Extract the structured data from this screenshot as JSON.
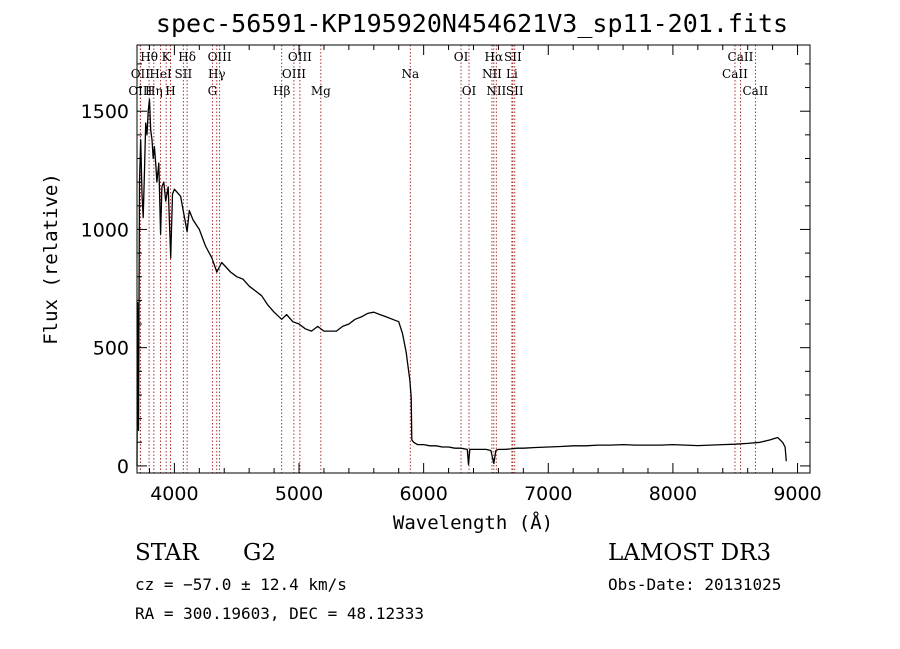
{
  "chart_data": {
    "type": "line",
    "title": "spec-56591-KP195920N454621V3_sp11-201.fits",
    "xlabel": "Wavelength (Å)",
    "ylabel": "Flux (relative)",
    "xlim": [
      3700,
      9100
    ],
    "ylim": [
      -30,
      1780
    ],
    "xticks": [
      4000,
      5000,
      6000,
      7000,
      8000,
      9000
    ],
    "yticks": [
      0,
      500,
      1000,
      1500
    ],
    "grid": false,
    "series": [
      {
        "name": "flux",
        "points": [
          [
            3700,
            0
          ],
          [
            3705,
            690
          ],
          [
            3712,
            150
          ],
          [
            3720,
            1200
          ],
          [
            3730,
            1380
          ],
          [
            3740,
            1150
          ],
          [
            3750,
            1050
          ],
          [
            3760,
            1250
          ],
          [
            3770,
            1450
          ],
          [
            3780,
            1400
          ],
          [
            3790,
            1500
          ],
          [
            3800,
            1550
          ],
          [
            3810,
            1420
          ],
          [
            3820,
            1380
          ],
          [
            3830,
            1300
          ],
          [
            3840,
            1350
          ],
          [
            3850,
            1280
          ],
          [
            3860,
            1200
          ],
          [
            3875,
            1280
          ],
          [
            3889,
            980
          ],
          [
            3900,
            1180
          ],
          [
            3915,
            1200
          ],
          [
            3930,
            1120
          ],
          [
            3950,
            1180
          ],
          [
            3970,
            880
          ],
          [
            3985,
            1150
          ],
          [
            4000,
            1170
          ],
          [
            4050,
            1140
          ],
          [
            4102,
            990
          ],
          [
            4120,
            1080
          ],
          [
            4150,
            1040
          ],
          [
            4200,
            1000
          ],
          [
            4250,
            930
          ],
          [
            4300,
            880
          ],
          [
            4340,
            820
          ],
          [
            4380,
            860
          ],
          [
            4450,
            820
          ],
          [
            4500,
            800
          ],
          [
            4550,
            790
          ],
          [
            4600,
            760
          ],
          [
            4650,
            740
          ],
          [
            4700,
            720
          ],
          [
            4750,
            680
          ],
          [
            4800,
            650
          ],
          [
            4861,
            620
          ],
          [
            4900,
            640
          ],
          [
            4950,
            610
          ],
          [
            5000,
            600
          ],
          [
            5050,
            580
          ],
          [
            5100,
            570
          ],
          [
            5150,
            590
          ],
          [
            5200,
            570
          ],
          [
            5250,
            570
          ],
          [
            5300,
            570
          ],
          [
            5350,
            590
          ],
          [
            5400,
            600
          ],
          [
            5450,
            620
          ],
          [
            5500,
            630
          ],
          [
            5550,
            645
          ],
          [
            5600,
            650
          ],
          [
            5650,
            640
          ],
          [
            5700,
            630
          ],
          [
            5750,
            620
          ],
          [
            5800,
            610
          ],
          [
            5830,
            560
          ],
          [
            5860,
            480
          ],
          [
            5890,
            360
          ],
          [
            5900,
            290
          ],
          [
            5905,
            110
          ],
          [
            5920,
            100
          ],
          [
            5950,
            90
          ],
          [
            6000,
            90
          ],
          [
            6050,
            85
          ],
          [
            6100,
            85
          ],
          [
            6150,
            80
          ],
          [
            6200,
            80
          ],
          [
            6250,
            75
          ],
          [
            6300,
            75
          ],
          [
            6350,
            70
          ],
          [
            6360,
            5
          ],
          [
            6370,
            70
          ],
          [
            6400,
            70
          ],
          [
            6450,
            70
          ],
          [
            6500,
            70
          ],
          [
            6540,
            65
          ],
          [
            6563,
            10
          ],
          [
            6580,
            65
          ],
          [
            6600,
            70
          ],
          [
            6650,
            70
          ],
          [
            6700,
            72
          ],
          [
            6750,
            75
          ],
          [
            6800,
            75
          ],
          [
            6900,
            78
          ],
          [
            7000,
            80
          ],
          [
            7100,
            82
          ],
          [
            7200,
            85
          ],
          [
            7300,
            85
          ],
          [
            7400,
            88
          ],
          [
            7500,
            88
          ],
          [
            7600,
            90
          ],
          [
            7700,
            88
          ],
          [
            7800,
            88
          ],
          [
            7900,
            88
          ],
          [
            8000,
            90
          ],
          [
            8100,
            88
          ],
          [
            8200,
            86
          ],
          [
            8300,
            88
          ],
          [
            8400,
            90
          ],
          [
            8500,
            92
          ],
          [
            8600,
            95
          ],
          [
            8700,
            100
          ],
          [
            8780,
            110
          ],
          [
            8840,
            120
          ],
          [
            8880,
            100
          ],
          [
            8900,
            80
          ],
          [
            8910,
            20
          ]
        ]
      }
    ],
    "spectral_lines": [
      {
        "label": "Hθ",
        "wavelength": 3797,
        "row": 1
      },
      {
        "label": "OII",
        "wavelength": 3727,
        "row": 2
      },
      {
        "label": "OIII",
        "wavelength": 3727,
        "row": 3
      },
      {
        "label": "K",
        "wavelength": 3934,
        "row": 1
      },
      {
        "label": "Hδ",
        "wavelength": 4102,
        "row": 1
      },
      {
        "label": "HeI",
        "wavelength": 3889,
        "row": 2
      },
      {
        "label": "SII",
        "wavelength": 4072,
        "row": 2
      },
      {
        "label": "Hη",
        "wavelength": 3835,
        "row": 3
      },
      {
        "label": "H",
        "wavelength": 3969,
        "row": 3
      },
      {
        "label": "OIII",
        "wavelength": 4363,
        "row": 1
      },
      {
        "label": "Hγ",
        "wavelength": 4340,
        "row": 2
      },
      {
        "label": "G",
        "wavelength": 4305,
        "row": 3
      },
      {
        "label": "OIII",
        "wavelength": 5007,
        "row": 1
      },
      {
        "label": "OIII",
        "wavelength": 4959,
        "row": 2
      },
      {
        "label": "Hβ",
        "wavelength": 4861,
        "row": 3
      },
      {
        "label": "Mg",
        "wavelength": 5175,
        "row": 3
      },
      {
        "label": "Na",
        "wavelength": 5893,
        "row": 2
      },
      {
        "label": "OI",
        "wavelength": 6300,
        "row": 1
      },
      {
        "label": "OI",
        "wavelength": 6364,
        "row": 3
      },
      {
        "label": "Hα",
        "wavelength": 6563,
        "row": 1
      },
      {
        "label": "SII",
        "wavelength": 6716,
        "row": 1
      },
      {
        "label": "NII",
        "wavelength": 6548,
        "row": 2
      },
      {
        "label": "Li",
        "wavelength": 6708,
        "row": 2
      },
      {
        "label": "NII",
        "wavelength": 6583,
        "row": 3
      },
      {
        "label": "SII",
        "wavelength": 6731,
        "row": 3
      },
      {
        "label": "CaII",
        "wavelength": 8542,
        "row": 1
      },
      {
        "label": "CaII",
        "wavelength": 8498,
        "row": 2
      },
      {
        "label": "CaII",
        "wavelength": 8662,
        "row": 3
      }
    ]
  },
  "info": {
    "class": "STAR",
    "subclass": "G2",
    "survey": "LAMOST DR3",
    "cz": "cz = −57.0 ± 12.4 km/s",
    "obsdate": "Obs-Date: 20131025",
    "radec": "RA = 300.19603, DEC =  48.12333"
  }
}
